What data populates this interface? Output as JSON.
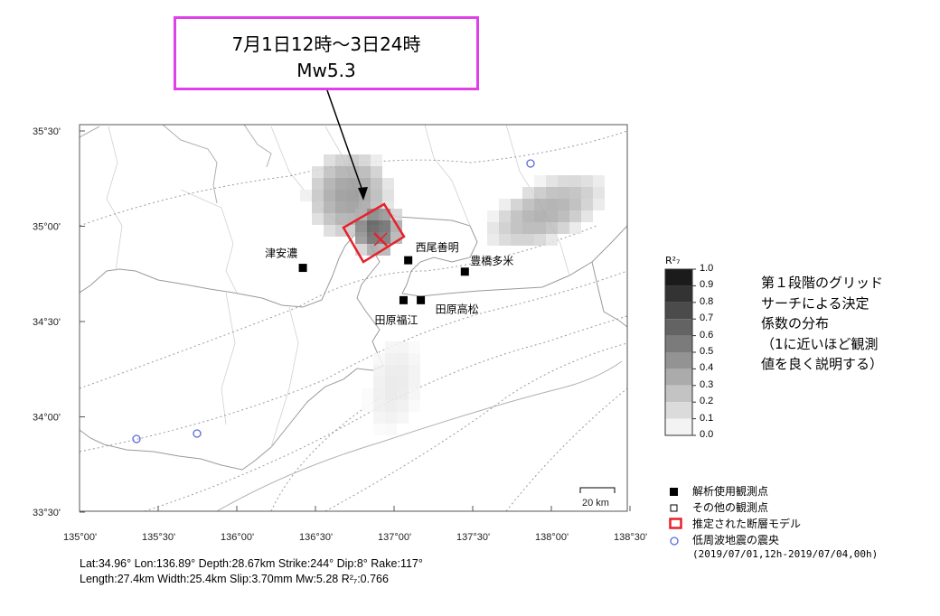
{
  "callout": {
    "line1": "7月1日12時～3日24時",
    "line2": "Mw5.3"
  },
  "map": {
    "x_ticks": [
      "135°00'",
      "135°30'",
      "136°00'",
      "136°30'",
      "137°00'",
      "137°30'",
      "138°00'",
      "138°30'"
    ],
    "y_ticks": [
      "35°30'",
      "35°00'",
      "34°30'",
      "34°00'",
      "33°30'"
    ],
    "stations": [
      {
        "name": "津安濃",
        "lat": 34.78,
        "lon": 136.42
      },
      {
        "name": "西尾善明",
        "lat": 34.82,
        "lon": 137.09
      },
      {
        "name": "豊橋多米",
        "lat": 34.76,
        "lon": 137.45
      },
      {
        "name": "田原福江",
        "lat": 34.61,
        "lon": 137.06
      },
      {
        "name": "田原高松",
        "lat": 34.61,
        "lon": 137.17
      }
    ],
    "epicenter": {
      "lat": 34.96,
      "lon": 136.89
    },
    "scale_bar_label": "20 km"
  },
  "colorbar": {
    "title": "R²₇",
    "labels": [
      "1.0",
      "0.9",
      "0.8",
      "0.7",
      "0.6",
      "0.5",
      "0.4",
      "0.3",
      "0.2",
      "0.1",
      "0.0"
    ]
  },
  "note": {
    "lines": [
      "第１段階のグリッド",
      "サーチによる決定",
      "係数の分布",
      "（1に近いほど観測",
      "値を良く説明する）"
    ]
  },
  "legend": {
    "items": [
      "解析使用観測点",
      "その他の観測点",
      "推定された断層モデル",
      "低周波地震の震央"
    ],
    "period": "(2019/07/01,12h-2019/07/04,00h)"
  },
  "params": {
    "line1": "Lat:34.96° Lon:136.89° Depth:28.67km Strike:244° Dip:8° Rake:117°",
    "line2": "Length:27.4km Width:25.4km Slip:3.70mm Mw:5.28 R²₇:0.766"
  },
  "colors": {
    "callout_border": "#e040e8",
    "fault": "#e8202a",
    "lfe": "#5a6ad8"
  }
}
